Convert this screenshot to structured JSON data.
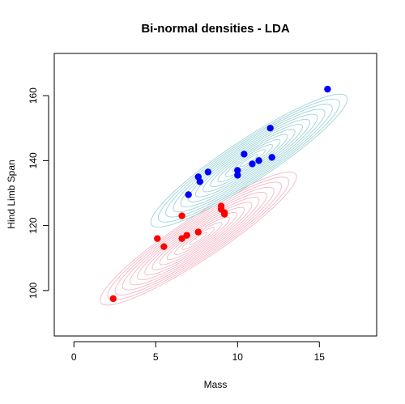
{
  "chart_data": {
    "type": "scatter",
    "title": "Bi-normal densities - LDA",
    "xlabel": "Mass",
    "ylabel": "Hind Limb Span",
    "xlim": [
      -1.2,
      18.5
    ],
    "ylim": [
      86,
      173
    ],
    "xticks": [
      0,
      5,
      10,
      15
    ],
    "yticks": [
      100,
      120,
      140,
      160
    ],
    "grid": false,
    "contours": [
      {
        "group": "red",
        "color": "#f2b8c6",
        "center": [
          7.6,
          116
        ],
        "var_x": 6.0,
        "var_y": 70,
        "cov_xy": 19.0,
        "levels": 13
      },
      {
        "group": "blue",
        "color": "#9ed3d8",
        "center": [
          10.7,
          140
        ],
        "var_x": 6.0,
        "var_y": 70,
        "cov_xy": 19.0,
        "levels": 13
      }
    ],
    "series": [
      {
        "color": "#ff0000",
        "points": [
          [
            2.4,
            97.5
          ],
          [
            5.1,
            116
          ],
          [
            5.5,
            113.5
          ],
          [
            6.6,
            123
          ],
          [
            6.6,
            116
          ],
          [
            6.9,
            117
          ],
          [
            7.6,
            118
          ],
          [
            9.0,
            126
          ],
          [
            9.0,
            125
          ],
          [
            9.2,
            123.5
          ],
          [
            9.2,
            124
          ]
        ]
      },
      {
        "color": "#0000ff",
        "points": [
          [
            7.0,
            129.5
          ],
          [
            7.6,
            135
          ],
          [
            7.7,
            133.5
          ],
          [
            8.2,
            136.5
          ],
          [
            10.0,
            135.5
          ],
          [
            10.0,
            137
          ],
          [
            10.4,
            142
          ],
          [
            10.9,
            139
          ],
          [
            11.3,
            140
          ],
          [
            12.0,
            150
          ],
          [
            12.1,
            141
          ],
          [
            15.5,
            162
          ]
        ]
      }
    ]
  }
}
